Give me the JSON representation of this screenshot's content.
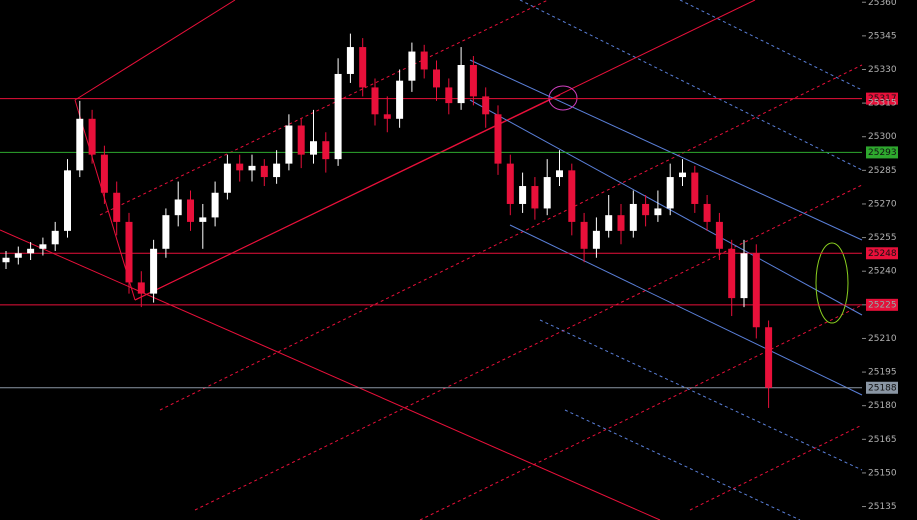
{
  "chart_data": {
    "type": "candlestick",
    "ylim": [
      25129,
      25361
    ],
    "yticks": [
      25360,
      25345,
      25330,
      25315,
      25300,
      25285,
      25270,
      25255,
      25240,
      25225,
      25210,
      25195,
      25180,
      25165,
      25150,
      25135
    ],
    "up_color": "#ffffff",
    "down_color": "#e8103a",
    "ohlc": [
      [
        25244,
        25249,
        25241,
        25246
      ],
      [
        25246,
        25251,
        25243,
        25248
      ],
      [
        25248,
        25253,
        25245,
        25250
      ],
      [
        25250,
        25255,
        25247,
        25252
      ],
      [
        25252,
        25262,
        25249,
        25258
      ],
      [
        25258,
        25290,
        25255,
        25285
      ],
      [
        25285,
        25316,
        25282,
        25308
      ],
      [
        25308,
        25312,
        25288,
        25292
      ],
      [
        25292,
        25296,
        25270,
        25275
      ],
      [
        25275,
        25280,
        25256,
        25262
      ],
      [
        25262,
        25266,
        25230,
        25235
      ],
      [
        25235,
        25240,
        25224,
        25230
      ],
      [
        25230,
        25254,
        25226,
        25250
      ],
      [
        25250,
        25268,
        25246,
        25265
      ],
      [
        25265,
        25280,
        25260,
        25272
      ],
      [
        25272,
        25276,
        25258,
        25262
      ],
      [
        25262,
        25270,
        25250,
        25264
      ],
      [
        25264,
        25280,
        25260,
        25275
      ],
      [
        25275,
        25292,
        25272,
        25288
      ],
      [
        25288,
        25292,
        25280,
        25285
      ],
      [
        25285,
        25292,
        25280,
        25287
      ],
      [
        25287,
        25290,
        25278,
        25282
      ],
      [
        25282,
        25294,
        25279,
        25288
      ],
      [
        25288,
        25310,
        25285,
        25305
      ],
      [
        25305,
        25308,
        25286,
        25292
      ],
      [
        25292,
        25312,
        25288,
        25298
      ],
      [
        25298,
        25302,
        25284,
        25290
      ],
      [
        25290,
        25335,
        25287,
        25328
      ],
      [
        25328,
        25346,
        25324,
        25340
      ],
      [
        25340,
        25344,
        25318,
        25322
      ],
      [
        25322,
        25326,
        25305,
        25310
      ],
      [
        25310,
        25318,
        25302,
        25308
      ],
      [
        25308,
        25330,
        25304,
        25325
      ],
      [
        25325,
        25342,
        25320,
        25338
      ],
      [
        25338,
        25341,
        25326,
        25330
      ],
      [
        25330,
        25334,
        25316,
        25322
      ],
      [
        25322,
        25326,
        25310,
        25315
      ],
      [
        25315,
        25340,
        25312,
        25332
      ],
      [
        25332,
        25336,
        25314,
        25318
      ],
      [
        25318,
        25322,
        25304,
        25310
      ],
      [
        25310,
        25314,
        25283,
        25288
      ],
      [
        25288,
        25292,
        25265,
        25270
      ],
      [
        25270,
        25284,
        25266,
        25278
      ],
      [
        25278,
        25282,
        25263,
        25268
      ],
      [
        25268,
        25290,
        25265,
        25282
      ],
      [
        25282,
        25294,
        25278,
        25285
      ],
      [
        25285,
        25288,
        25256,
        25262
      ],
      [
        25262,
        25266,
        25244,
        25250
      ],
      [
        25250,
        25264,
        25246,
        25258
      ],
      [
        25258,
        25274,
        25255,
        25265
      ],
      [
        25265,
        25270,
        25252,
        25258
      ],
      [
        25258,
        25276,
        25255,
        25270
      ],
      [
        25270,
        25274,
        25260,
        25265
      ],
      [
        25265,
        25276,
        25262,
        25268
      ],
      [
        25268,
        25288,
        25265,
        25282
      ],
      [
        25282,
        25290,
        25278,
        25284
      ],
      [
        25284,
        25287,
        25266,
        25270
      ],
      [
        25270,
        25274,
        25258,
        25262
      ],
      [
        25262,
        25266,
        25245,
        25250
      ],
      [
        25250,
        25254,
        25220,
        25228
      ],
      [
        25228,
        25254,
        25224,
        25248
      ],
      [
        25248,
        25252,
        25210,
        25215
      ],
      [
        25215,
        25218,
        25179,
        25188
      ]
    ],
    "hlines": [
      {
        "value": 25317,
        "color": "#e8103a"
      },
      {
        "value": 25293,
        "color": "#2ea82e"
      },
      {
        "value": 25248,
        "color": "#e8103a"
      },
      {
        "value": 25225,
        "color": "#e8103a"
      },
      {
        "value": 25188,
        "color": "#8a96a4"
      }
    ]
  }
}
